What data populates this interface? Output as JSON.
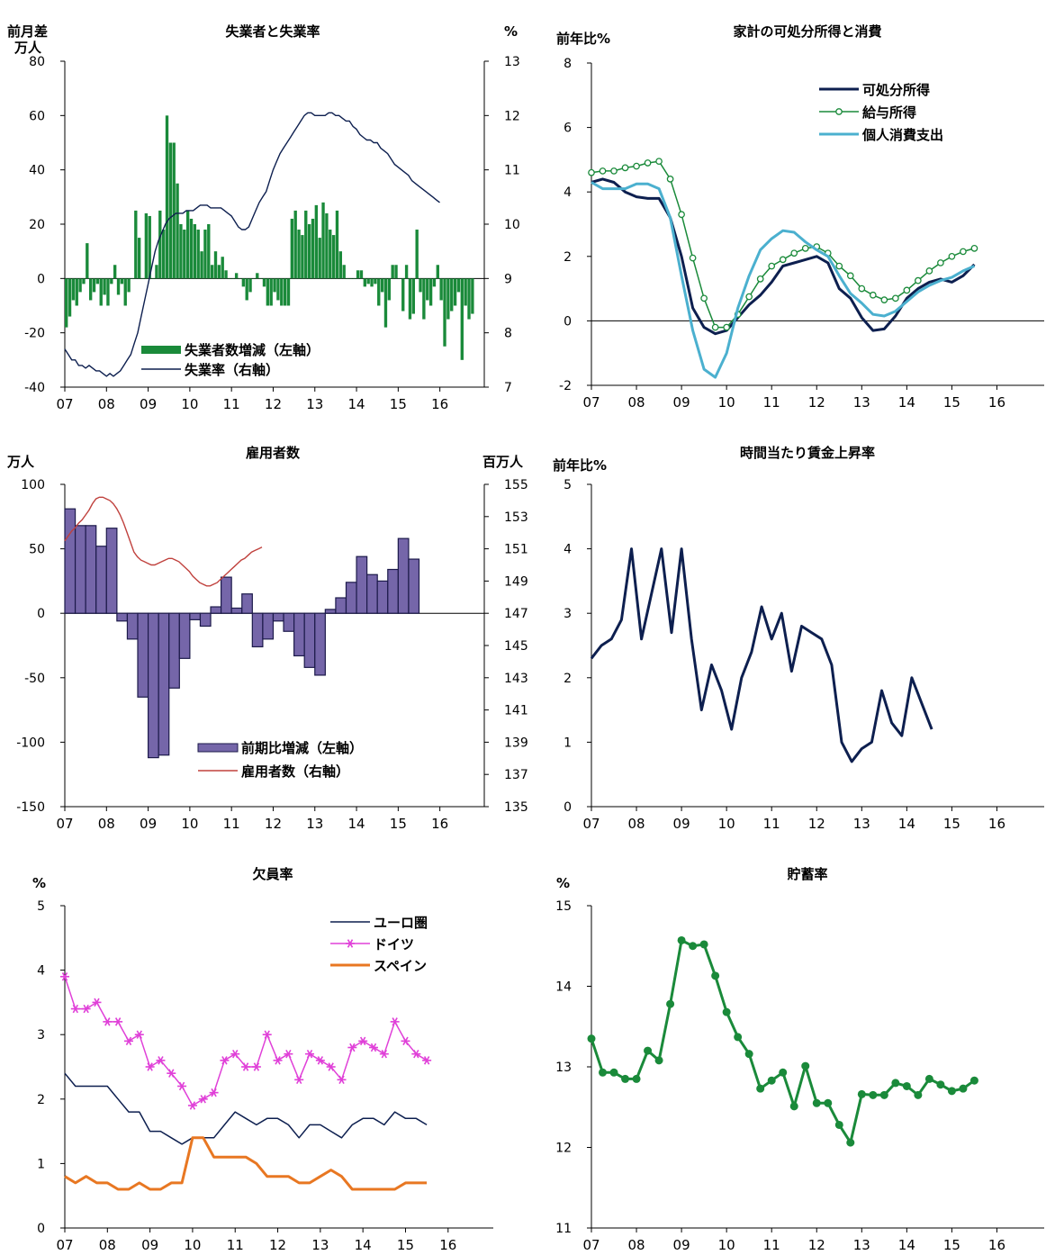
{
  "colors": {
    "green": "#1a8a3a",
    "navy": "#0d1f4f",
    "lightblue": "#4bb0cf",
    "purple": "#7566a9",
    "red": "#c0413d",
    "magenta": "#e040d8",
    "orange": "#e87722"
  },
  "chart_data": [
    {
      "id": "unemp",
      "type": "bar+line",
      "title": "失業者と失業率",
      "ylabel_left": "前月差\n万人",
      "ylabel_right": "%",
      "left": {
        "min": -40,
        "max": 80,
        "ticks": [
          -40,
          -20,
          0,
          20,
          40,
          60,
          80
        ],
        "tick_labels": [
          "-40",
          "-20",
          "0",
          "20",
          "40",
          "60",
          "80"
        ]
      },
      "right": {
        "min": 7,
        "max": 13,
        "ticks": [
          7,
          8,
          9,
          10,
          11,
          12,
          13
        ],
        "tick_labels": [
          "7",
          "8",
          "9",
          "10",
          "11",
          "12",
          "13"
        ]
      },
      "x_labels": [
        "07",
        "08",
        "09",
        "10",
        "11",
        "12",
        "13",
        "14",
        "15",
        "16"
      ],
      "legend": [
        "失業者数増減（左軸）",
        "失業率（右軸）"
      ],
      "bars": {
        "name": "失業者数増減（左軸）",
        "axis": "left",
        "color": "green",
        "start": 2007.0,
        "step": 0.0833,
        "values": [
          -18,
          -14,
          -8,
          -10,
          -5,
          -2,
          13,
          -8,
          -5,
          -2,
          -10,
          -6,
          -10,
          -2,
          5,
          -6,
          -2,
          -10,
          -5,
          0,
          25,
          15,
          0,
          24,
          23,
          0,
          5,
          25,
          18,
          60,
          50,
          50,
          35,
          20,
          18,
          25,
          22,
          20,
          18,
          10,
          18,
          20,
          5,
          10,
          5,
          8,
          3,
          0,
          0,
          2,
          0,
          -3,
          -8,
          -5,
          0,
          2,
          0,
          -3,
          -10,
          -10,
          -5,
          -8,
          -10,
          -10,
          -10,
          22,
          25,
          18,
          16,
          25,
          20,
          22,
          27,
          15,
          28,
          24,
          18,
          16,
          25,
          10,
          5,
          0,
          0,
          0,
          3,
          3,
          -3,
          -2,
          -3,
          -2,
          -10,
          -5,
          -18,
          -8,
          5,
          5,
          0,
          -12,
          5,
          -15,
          -13,
          18,
          -5,
          -15,
          -8,
          -10,
          -3,
          5,
          -8,
          -25,
          -15,
          -12,
          -10,
          -5,
          -30,
          -10,
          -15,
          -13
        ]
      },
      "line": {
        "name": "失業率（右軸）",
        "axis": "right",
        "color": "navy",
        "start": 2007.0,
        "step": 0.0833,
        "values": [
          7.7,
          7.6,
          7.5,
          7.5,
          7.4,
          7.4,
          7.35,
          7.4,
          7.35,
          7.3,
          7.3,
          7.25,
          7.2,
          7.25,
          7.2,
          7.25,
          7.3,
          7.4,
          7.5,
          7.6,
          7.8,
          8.0,
          8.3,
          8.6,
          8.9,
          9.2,
          9.5,
          9.7,
          9.85,
          10.0,
          10.1,
          10.15,
          10.2,
          10.2,
          10.2,
          10.25,
          10.25,
          10.25,
          10.3,
          10.35,
          10.35,
          10.35,
          10.3,
          10.3,
          10.3,
          10.3,
          10.25,
          10.2,
          10.15,
          10.05,
          9.95,
          9.9,
          9.9,
          9.95,
          10.1,
          10.25,
          10.4,
          10.5,
          10.6,
          10.8,
          11.0,
          11.15,
          11.3,
          11.4,
          11.5,
          11.6,
          11.7,
          11.8,
          11.9,
          12.0,
          12.05,
          12.05,
          12.0,
          12.0,
          12.0,
          12.0,
          12.05,
          12.05,
          12.0,
          12.0,
          11.95,
          11.9,
          11.9,
          11.8,
          11.75,
          11.65,
          11.6,
          11.55,
          11.55,
          11.5,
          11.5,
          11.4,
          11.35,
          11.3,
          11.2,
          11.1,
          11.05,
          11.0,
          10.95,
          10.9,
          10.8,
          10.75,
          10.7,
          10.65,
          10.6,
          10.55,
          10.5,
          10.45,
          10.4
        ]
      }
    },
    {
      "id": "income",
      "type": "line",
      "title": "家計の可処分所得と消費",
      "ylabel_left": "前年比%",
      "left": {
        "min": -2,
        "max": 8,
        "ticks": [
          -2,
          0,
          2,
          4,
          6,
          8
        ],
        "tick_labels": [
          "-2",
          "0",
          "2",
          "4",
          "6",
          "8"
        ]
      },
      "x_labels": [
        "07",
        "08",
        "09",
        "10",
        "11",
        "12",
        "13",
        "14",
        "15",
        "16"
      ],
      "legend": [
        "可処分所得",
        "給与所得",
        "個人消費支出"
      ],
      "series": [
        {
          "name": "可処分所得",
          "color": "navy",
          "width": 3,
          "start": 2007.0,
          "step": 0.25,
          "values": [
            4.3,
            4.4,
            4.3,
            4.0,
            3.85,
            3.8,
            3.8,
            3.2,
            2.0,
            0.4,
            -0.2,
            -0.4,
            -0.3,
            0.1,
            0.5,
            0.8,
            1.2,
            1.7,
            1.8,
            1.9,
            2.0,
            1.8,
            1.0,
            0.7,
            0.1,
            -0.3,
            -0.25,
            0.15,
            0.7,
            1.0,
            1.2,
            1.3,
            1.2,
            1.4,
            1.75
          ]
        },
        {
          "name": "給与所得",
          "color": "green",
          "width": 1.5,
          "marker": "circle",
          "start": 2007.0,
          "step": 0.25,
          "values": [
            4.6,
            4.65,
            4.65,
            4.75,
            4.8,
            4.9,
            4.95,
            4.4,
            3.3,
            1.95,
            0.7,
            -0.2,
            -0.2,
            0.2,
            0.75,
            1.3,
            1.7,
            1.9,
            2.1,
            2.25,
            2.3,
            2.1,
            1.7,
            1.4,
            1.0,
            0.8,
            0.65,
            0.7,
            0.95,
            1.25,
            1.55,
            1.8,
            2.0,
            2.15,
            2.25
          ]
        },
        {
          "name": "個人消費支出",
          "color": "lightblue",
          "width": 3,
          "start": 2007.0,
          "step": 0.25,
          "values": [
            4.3,
            4.1,
            4.1,
            4.1,
            4.25,
            4.25,
            4.1,
            3.2,
            1.4,
            -0.3,
            -1.5,
            -1.75,
            -1.0,
            0.4,
            1.4,
            2.2,
            2.55,
            2.8,
            2.75,
            2.45,
            2.2,
            2.0,
            1.4,
            0.85,
            0.55,
            0.2,
            0.15,
            0.3,
            0.6,
            0.9,
            1.1,
            1.25,
            1.35,
            1.55,
            1.7
          ]
        }
      ]
    },
    {
      "id": "employ",
      "type": "bar+line",
      "title": "雇用者数",
      "ylabel_left": "万人",
      "ylabel_right": "百万人",
      "left": {
        "min": -150,
        "max": 100,
        "ticks": [
          -150,
          -100,
          -50,
          0,
          50,
          100
        ],
        "tick_labels": [
          "-150",
          "-100",
          "-50",
          "0",
          "50",
          "100"
        ]
      },
      "right": {
        "min": 135,
        "max": 155,
        "ticks": [
          135,
          137,
          139,
          141,
          143,
          145,
          147,
          149,
          151,
          153,
          155
        ],
        "tick_labels": [
          "135",
          "137",
          "139",
          "141",
          "143",
          "145",
          "147",
          "149",
          "151",
          "153",
          "155"
        ]
      },
      "x_labels": [
        "07",
        "08",
        "09",
        "10",
        "11",
        "12",
        "13",
        "14",
        "15",
        "16"
      ],
      "legend": [
        "前期比増減（左軸）",
        "雇用者数（右軸）"
      ],
      "bars": {
        "name": "前期比増減（左軸）",
        "axis": "left",
        "color": "purple",
        "start": 2007.0,
        "step": 0.25,
        "values": [
          81,
          68,
          68,
          52,
          66,
          -6,
          -20,
          -65,
          -112,
          -110,
          -58,
          -35,
          -5,
          -10,
          5,
          28,
          4,
          15,
          -26,
          -20,
          -6,
          -14,
          -33,
          -42,
          -48,
          3,
          12,
          24,
          44,
          30,
          25,
          34,
          58,
          42
        ]
      },
      "line": {
        "name": "雇用者数（右軸）",
        "axis": "right",
        "color": "red",
        "start": 2007.0,
        "step": 0.083,
        "values": [
          151.5,
          151.8,
          152.1,
          152.3,
          152.6,
          152.8,
          153.1,
          153.4,
          153.8,
          154.1,
          154.2,
          154.2,
          154.1,
          154.0,
          153.8,
          153.5,
          153.1,
          152.6,
          152.0,
          151.4,
          150.8,
          150.5,
          150.3,
          150.2,
          150.1,
          150.0,
          150.0,
          150.1,
          150.2,
          150.3,
          150.4,
          150.4,
          150.3,
          150.2,
          150.0,
          149.8,
          149.6,
          149.3,
          149.1,
          148.9,
          148.8,
          148.7,
          148.7,
          148.8,
          148.9,
          149.1,
          149.3,
          149.5,
          149.7,
          149.9,
          150.1,
          150.3,
          150.4,
          150.6,
          150.8,
          150.9,
          151.0,
          151.1
        ]
      }
    },
    {
      "id": "wage",
      "type": "line",
      "title": "時間当たり賃金上昇率",
      "ylabel_left": "前年比%",
      "left": {
        "min": 0,
        "max": 5,
        "ticks": [
          0,
          1,
          2,
          3,
          4,
          5
        ],
        "tick_labels": [
          "0",
          "1",
          "2",
          "3",
          "4",
          "5"
        ]
      },
      "x_labels": [
        "07",
        "08",
        "09",
        "10",
        "11",
        "12",
        "13",
        "14",
        "15",
        "16"
      ],
      "series": [
        {
          "name": "",
          "color": "navy",
          "width": 3,
          "start": 2007.0,
          "step": 0.2222,
          "values": [
            2.3,
            2.5,
            2.6,
            2.9,
            4.0,
            2.6,
            3.3,
            4.0,
            2.7,
            4.0,
            2.6,
            1.5,
            2.2,
            1.8,
            1.2,
            2.0,
            2.4,
            3.1,
            2.6,
            3.0,
            2.1,
            2.8,
            2.7,
            2.6,
            2.2,
            1.0,
            0.7,
            0.9,
            1.0,
            1.8,
            1.3,
            1.1,
            2.0,
            1.6,
            1.2
          ]
        }
      ]
    },
    {
      "id": "vacancy",
      "type": "line",
      "title": "欠員率",
      "ylabel_left": "%",
      "left": {
        "min": 0,
        "max": 5,
        "ticks": [
          0,
          1,
          2,
          3,
          4,
          5
        ],
        "tick_labels": [
          "0",
          "1",
          "2",
          "3",
          "4",
          "5"
        ]
      },
      "x_labels": [
        "07",
        "08",
        "09",
        "10",
        "11",
        "12",
        "13",
        "14",
        "15",
        "16"
      ],
      "legend": [
        "ユーロ圏",
        "ドイツ",
        "スペイン"
      ],
      "series": [
        {
          "name": "ユーロ圏",
          "color": "navy",
          "width": 1.5,
          "start": 2007.0,
          "step": 0.25,
          "values": [
            2.4,
            2.2,
            2.2,
            2.2,
            2.2,
            2.0,
            1.8,
            1.8,
            1.5,
            1.5,
            1.4,
            1.3,
            1.4,
            1.4,
            1.4,
            1.6,
            1.8,
            1.7,
            1.6,
            1.7,
            1.7,
            1.6,
            1.4,
            1.6,
            1.6,
            1.5,
            1.4,
            1.6,
            1.7,
            1.7,
            1.6,
            1.8,
            1.7,
            1.7,
            1.6
          ]
        },
        {
          "name": "ドイツ",
          "color": "magenta",
          "width": 1.5,
          "marker": "star",
          "start": 2007.0,
          "step": 0.25,
          "values": [
            3.9,
            3.4,
            3.4,
            3.5,
            3.2,
            3.2,
            2.9,
            3.0,
            2.5,
            2.6,
            2.4,
            2.2,
            1.9,
            2.0,
            2.1,
            2.6,
            2.7,
            2.5,
            2.5,
            3.0,
            2.6,
            2.7,
            2.3,
            2.7,
            2.6,
            2.5,
            2.3,
            2.8,
            2.9,
            2.8,
            2.7,
            3.2,
            2.9,
            2.7,
            2.6
          ]
        },
        {
          "name": "スペイン",
          "color": "orange",
          "width": 3,
          "start": 2007.0,
          "step": 0.25,
          "values": [
            0.8,
            0.7,
            0.8,
            0.7,
            0.7,
            0.6,
            0.6,
            0.7,
            0.6,
            0.6,
            0.7,
            0.7,
            1.4,
            1.4,
            1.1,
            1.1,
            1.1,
            1.1,
            1.0,
            0.8,
            0.8,
            0.8,
            0.7,
            0.7,
            0.8,
            0.9,
            0.8,
            0.6,
            0.6,
            0.6,
            0.6,
            0.6,
            0.7,
            0.7,
            0.7
          ]
        }
      ]
    },
    {
      "id": "saving",
      "type": "line",
      "title": "貯蓄率",
      "ylabel_left": "%",
      "left": {
        "min": 11,
        "max": 15,
        "ticks": [
          11,
          12,
          13,
          14,
          15
        ],
        "tick_labels": [
          "11",
          "12",
          "13",
          "14",
          "15"
        ]
      },
      "x_labels": [
        "07",
        "08",
        "09",
        "10",
        "11",
        "12",
        "13",
        "14",
        "15",
        "16"
      ],
      "series": [
        {
          "name": "",
          "color": "green",
          "width": 3,
          "marker": "dot",
          "start": 2007.0,
          "step": 0.25,
          "values": [
            13.35,
            12.93,
            12.93,
            12.85,
            12.85,
            13.2,
            13.08,
            13.78,
            14.57,
            14.5,
            14.52,
            14.13,
            13.68,
            13.37,
            13.16,
            12.73,
            12.83,
            12.93,
            12.51,
            13.01,
            12.55,
            12.55,
            12.28,
            12.06,
            12.66,
            12.65,
            12.65,
            12.8,
            12.76,
            12.65,
            12.85,
            12.78,
            12.7,
            12.73,
            12.83
          ]
        }
      ]
    }
  ]
}
